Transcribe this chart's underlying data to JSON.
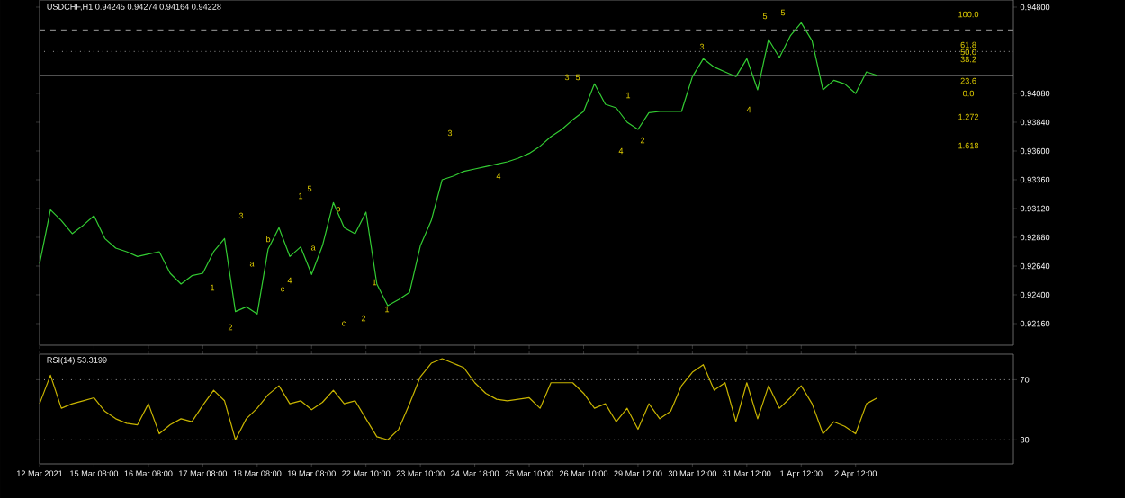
{
  "chart_data": [
    {
      "type": "line",
      "title": "USDCHF,H1 0.94245 0.94274 0.94164 0.94228",
      "categories": [
        null,
        null,
        null,
        null,
        null,
        null,
        null,
        null,
        null,
        null,
        null,
        null,
        null,
        null,
        null,
        null,
        null,
        null,
        null,
        null,
        null,
        null,
        null,
        null,
        null,
        null,
        null,
        null,
        null,
        null,
        null,
        null,
        null,
        null,
        null,
        null,
        null,
        null,
        null,
        null,
        null,
        null,
        null,
        null,
        null,
        null,
        null,
        null,
        null,
        null,
        null,
        null,
        null,
        null,
        null,
        null,
        null,
        null,
        null,
        null,
        null,
        null,
        null,
        null,
        null,
        null,
        null,
        null,
        null,
        null,
        null,
        null,
        null,
        null,
        null,
        null,
        null,
        null,
        null,
        null,
        null,
        null,
        null,
        null,
        null,
        null,
        null,
        null,
        null,
        null
      ],
      "series": [
        {
          "color": "#33cc33",
          "values": [
            0.9266,
            0.9311,
            0.9302,
            0.9291,
            0.9298,
            0.9306,
            0.9287,
            0.9279,
            0.9276,
            0.9272,
            0.9274,
            0.9276,
            0.9258,
            0.9249,
            0.9256,
            0.9258,
            0.9276,
            0.9287,
            0.9226,
            0.923,
            0.9224,
            0.9278,
            0.9296,
            0.9272,
            0.928,
            0.9257,
            0.9281,
            0.9317,
            0.9296,
            0.9291,
            0.9309,
            0.9249,
            0.9231,
            0.9236,
            0.9242,
            0.9281,
            0.9302,
            0.9336,
            0.9339,
            0.9343,
            0.9345,
            0.9347,
            0.9349,
            0.9351,
            0.9354,
            0.9358,
            0.9364,
            0.9372,
            0.9378,
            0.9386,
            0.9393,
            0.9416,
            0.9399,
            0.9396,
            0.9384,
            0.9378,
            0.9392,
            0.9393,
            0.9393,
            0.9393,
            0.9422,
            0.9437,
            0.943,
            0.9426,
            0.9422,
            0.9437,
            0.9411,
            0.9453,
            0.9438,
            0.9456,
            0.9467,
            0.9452,
            0.9411,
            0.9419,
            0.9416,
            0.9408,
            0.9426,
            0.9423,
            null,
            null,
            null,
            null,
            null,
            null,
            null,
            null,
            null,
            null,
            null,
            null
          ]
        }
      ],
      "ylim": [
        0.9198,
        0.9486
      ],
      "yticks": [
        {
          "value": 0.9216,
          "label": "0.92160"
        },
        {
          "value": 0.924,
          "label": "0.92400"
        },
        {
          "value": 0.9264,
          "label": "0.92640"
        },
        {
          "value": 0.9288,
          "label": "0.92880"
        },
        {
          "value": 0.9312,
          "label": "0.93120"
        },
        {
          "value": 0.9336,
          "label": "0.93360"
        },
        {
          "value": 0.936,
          "label": "0.93600"
        },
        {
          "value": 0.9384,
          "label": "0.93840"
        },
        {
          "value": 0.9408,
          "label": "0.94080"
        },
        {
          "value": 0.948,
          "label": "0.94800"
        }
      ],
      "ref_lines": [
        {
          "axis": "y",
          "value": 0.9461,
          "color": "#a0a0a0",
          "line_style": "dashed"
        },
        {
          "axis": "y",
          "value": 0.9443,
          "color": "#a0a0a0",
          "line_style": "dotted"
        },
        {
          "axis": "y",
          "value": 0.9423,
          "color": "#a0a0a0",
          "line_style": "solid"
        }
      ],
      "annotations": [
        "1",
        "2",
        "3",
        "a",
        "b",
        "c",
        "4",
        "1",
        "5",
        "a",
        "b",
        "c",
        "2",
        "1",
        "1",
        "3",
        "4",
        "3",
        "5",
        "1",
        "2",
        "4",
        "3",
        "4",
        "5",
        "5",
        "100.0",
        "61.8",
        "50.0",
        "38.2",
        "23.6",
        "0.0",
        "1.272",
        "1.618"
      ]
    },
    {
      "type": "line",
      "title": "RSI(14) 53.3199",
      "categories": [
        "12 Mar 2021",
        null,
        null,
        null,
        null,
        "15 Mar 08:00",
        null,
        null,
        null,
        null,
        "16 Mar 08:00",
        null,
        null,
        null,
        null,
        "17 Mar 08:00",
        null,
        null,
        null,
        null,
        "18 Mar 08:00",
        null,
        null,
        null,
        null,
        "19 Mar 08:00",
        null,
        null,
        null,
        null,
        "22 Mar 10:00",
        null,
        null,
        null,
        null,
        "23 Mar 10:00",
        null,
        null,
        null,
        null,
        "24 Mar 18:00",
        null,
        null,
        null,
        null,
        "25 Mar 10:00",
        null,
        null,
        null,
        null,
        "26 Mar 10:00",
        null,
        null,
        null,
        null,
        "29 Mar 12:00",
        null,
        null,
        null,
        null,
        "30 Mar 12:00",
        null,
        null,
        null,
        null,
        "31 Mar 12:00",
        null,
        null,
        null,
        null,
        "1 Apr 12:00",
        null,
        null,
        null,
        null,
        "2 Apr 12:00",
        null,
        null,
        null,
        null,
        null,
        null,
        null,
        null,
        null,
        null,
        null,
        null,
        null,
        null
      ],
      "series": [
        {
          "color": "#c8b400",
          "values": [
            54,
            73,
            51,
            54,
            56,
            58,
            49,
            44,
            41,
            40,
            54,
            34,
            40,
            44,
            42,
            53,
            63,
            56,
            30,
            44,
            51,
            60,
            66,
            54,
            56,
            50,
            55,
            63,
            54,
            56,
            44,
            32,
            30,
            37,
            54,
            72,
            81,
            84,
            81,
            78,
            68,
            61,
            57,
            56,
            57,
            58,
            51,
            68,
            68,
            68,
            61,
            51,
            54,
            42,
            51,
            37,
            54,
            44,
            49,
            66,
            75,
            80,
            63,
            68,
            42,
            68,
            44,
            66,
            51,
            58,
            66,
            54,
            34,
            42,
            39,
            34,
            54,
            58,
            null,
            null,
            null,
            null,
            null,
            null,
            null,
            null,
            null,
            null,
            null,
            null
          ]
        }
      ],
      "ylim": [
        14,
        87
      ],
      "yticks": [
        30,
        70
      ],
      "ref_lines": [
        {
          "axis": "y",
          "value": 70,
          "color": "#a0a0a0",
          "line_style": "dotted"
        },
        {
          "axis": "y",
          "value": 30,
          "color": "#a0a0a0",
          "line_style": "dotted"
        }
      ]
    }
  ]
}
